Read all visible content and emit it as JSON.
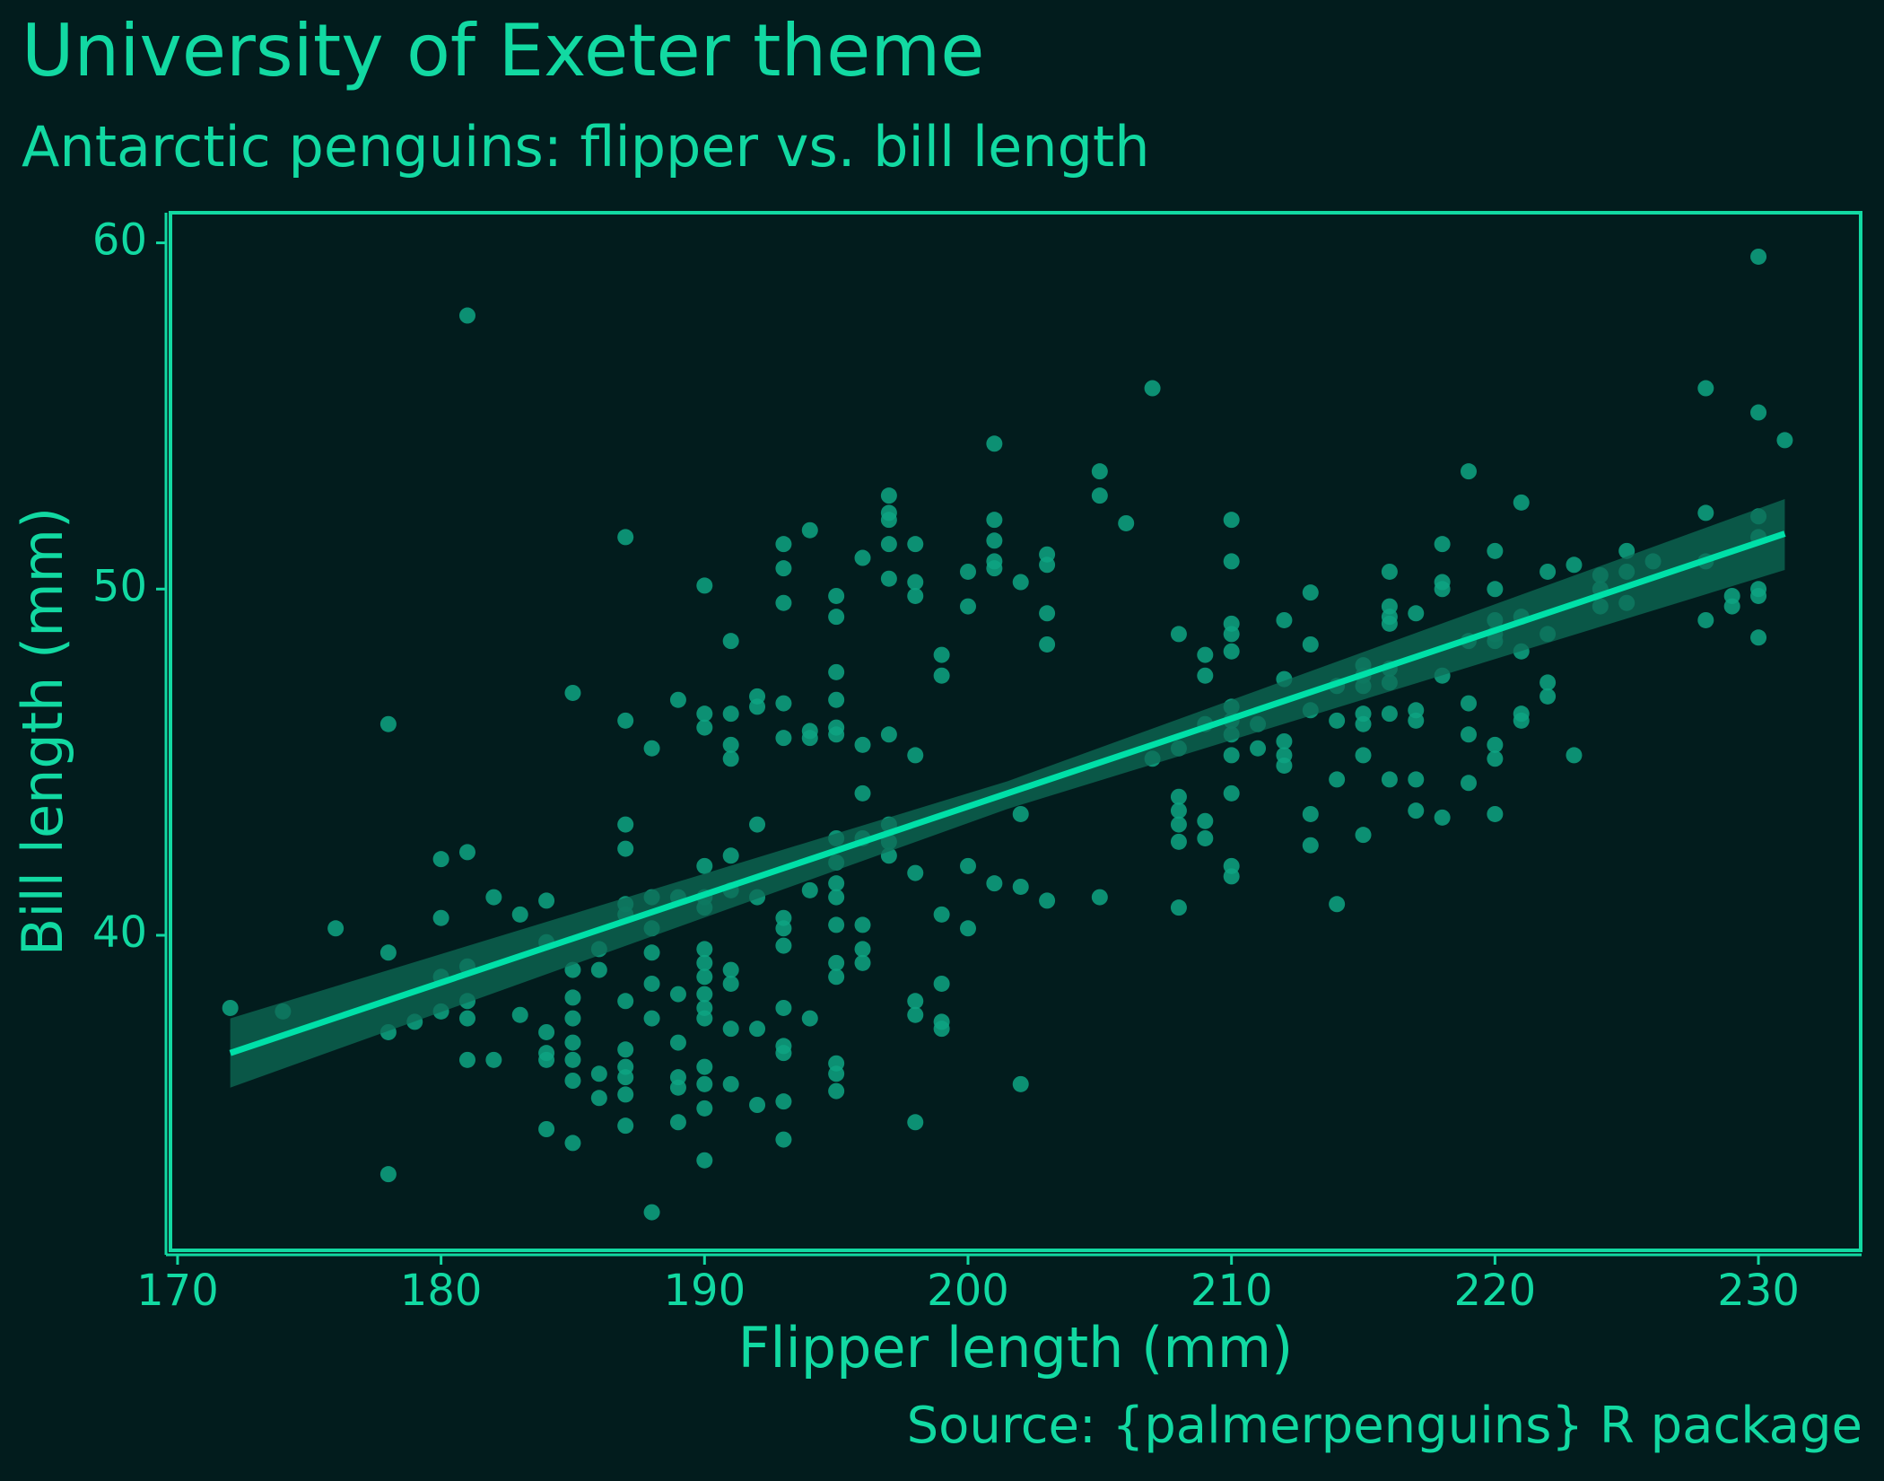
{
  "chart_data": {
    "type": "scatter",
    "title": "University of Exeter theme",
    "subtitle": "Antarctic penguins: flipper vs. bill length",
    "x_label": "Flipper length (mm)",
    "y_label": "Bill length (mm)",
    "caption": "Source: {palmerpenguins} R package",
    "xlim": [
      169.73,
      233.88
    ],
    "ylim": [
      30.9,
      60.87
    ],
    "xticks": [
      170,
      180,
      190,
      200,
      210,
      220,
      230
    ],
    "yticks": [
      40,
      50,
      60
    ],
    "point_color": "#0ea582",
    "line_color": "#00e0a8",
    "band_color": "#0e6b55",
    "text_color": "#12d9a2",
    "background": "#021c1d",
    "x": [
      172,
      174,
      176,
      178,
      178,
      178,
      178,
      179,
      180,
      180,
      180,
      180,
      181,
      181,
      181,
      181,
      181,
      181,
      182,
      182,
      183,
      183,
      184,
      184,
      184,
      184,
      184,
      184,
      185,
      185,
      185,
      185,
      185,
      185,
      185,
      185,
      186,
      186,
      186,
      186,
      187,
      187,
      187,
      187,
      187,
      187,
      187,
      187,
      187,
      187,
      187,
      187,
      188,
      188,
      188,
      188,
      188,
      188,
      188,
      189,
      189,
      189,
      189,
      189,
      189,
      189,
      190,
      190,
      190,
      190,
      190,
      190,
      190,
      190,
      190,
      190,
      190,
      190,
      190,
      190,
      190,
      190,
      191,
      191,
      191,
      191,
      191,
      191,
      191,
      191,
      191,
      191,
      192,
      192,
      192,
      192,
      192,
      192,
      193,
      193,
      193,
      193,
      193,
      193,
      193,
      193,
      193,
      193,
      193,
      193,
      193,
      194,
      194,
      194,
      194,
      194,
      195,
      195,
      195,
      195,
      195,
      195,
      195,
      195,
      195,
      195,
      195,
      195,
      195,
      195,
      195,
      195,
      196,
      196,
      196,
      196,
      196,
      196,
      196,
      197,
      197,
      197,
      197,
      197,
      197,
      197,
      197,
      197,
      198,
      198,
      198,
      198,
      198,
      198,
      198,
      198,
      199,
      199,
      199,
      199,
      199,
      199,
      200,
      200,
      200,
      200,
      201,
      201,
      201,
      201,
      201,
      201,
      202,
      202,
      202,
      202,
      203,
      203,
      203,
      203,
      203,
      205,
      205,
      205,
      206,
      207,
      207,
      208,
      208,
      208,
      208,
      208,
      208,
      208,
      209,
      209,
      209,
      209,
      209,
      210,
      210,
      210,
      210,
      210,
      210,
      210,
      210,
      210,
      210,
      210,
      210,
      211,
      211,
      212,
      212,
      212,
      212,
      212,
      213,
      213,
      213,
      213,
      213,
      214,
      214,
      214,
      214,
      215,
      215,
      215,
      215,
      215,
      215,
      215,
      216,
      216,
      216,
      216,
      216,
      216,
      216,
      216,
      217,
      217,
      217,
      217,
      217,
      218,
      218,
      218,
      218,
      218,
      219,
      219,
      219,
      219,
      219,
      220,
      220,
      220,
      220,
      220,
      220,
      220,
      220,
      221,
      221,
      221,
      221,
      221,
      222,
      222,
      222,
      222,
      223,
      223,
      224,
      224,
      224,
      225,
      225,
      225,
      226,
      228,
      228,
      228,
      228,
      229,
      229,
      230,
      230,
      230,
      230,
      230,
      230,
      230,
      231
    ],
    "values": [
      37.9,
      37.8,
      40.2,
      46.1,
      39.5,
      37.2,
      33.1,
      37.5,
      42.2,
      40.5,
      38.8,
      37.8,
      57.9,
      42.4,
      39.1,
      38.1,
      37.6,
      36.4,
      41.1,
      36.4,
      40.6,
      37.7,
      41,
      39.8,
      37.2,
      36.6,
      36.4,
      34.4,
      47,
      39,
      38.2,
      37.6,
      36.9,
      36.4,
      35.8,
      34,
      39.6,
      39,
      36,
      35.3,
      51.5,
      46.2,
      43.2,
      42.5,
      40.9,
      40.6,
      38.1,
      36.7,
      36.2,
      35.9,
      35.4,
      34.5,
      45.4,
      41.1,
      40.2,
      39.5,
      38.6,
      37.6,
      32,
      46.8,
      41.1,
      38.3,
      36.9,
      35.9,
      35.6,
      34.6,
      50.1,
      46.4,
      46,
      42,
      41.1,
      40.8,
      39.6,
      39.2,
      38.8,
      38.3,
      37.9,
      37.6,
      36.2,
      35.7,
      35,
      33.5,
      48.5,
      46.4,
      45.5,
      45.1,
      42.3,
      41.3,
      39,
      38.6,
      37.3,
      35.7,
      46.9,
      46.6,
      43.2,
      41.1,
      37.3,
      35.1,
      51.3,
      50.6,
      49.6,
      46.7,
      45.7,
      40.5,
      40.2,
      39.7,
      37.9,
      36.8,
      36.6,
      35.2,
      34.1,
      51.7,
      45.9,
      45.7,
      41.3,
      37.6,
      49.8,
      49.2,
      47.6,
      46.8,
      46,
      45.8,
      42.8,
      42.1,
      41.5,
      41.1,
      40.3,
      39.2,
      38.8,
      36.3,
      36,
      35.5,
      50.9,
      45.5,
      44.1,
      42.8,
      40.3,
      39.6,
      39.2,
      52.7,
      52.2,
      52,
      51.3,
      50.3,
      45.8,
      43.2,
      42.7,
      42.3,
      51.3,
      50.2,
      49.8,
      45.2,
      41.8,
      38.1,
      37.7,
      34.6,
      48.1,
      47.5,
      40.6,
      38.6,
      37.5,
      37.3,
      50.5,
      49.5,
      42,
      40.2,
      54.2,
      52,
      51.4,
      50.8,
      50.6,
      41.5,
      50.2,
      43.5,
      41.4,
      35.7,
      51,
      50.7,
      49.3,
      48.4,
      41,
      53.4,
      52.7,
      41.1,
      51.9,
      55.8,
      45.1,
      48.7,
      45.4,
      44,
      43.6,
      43.2,
      42.7,
      40.8,
      48.1,
      47.5,
      46.1,
      43.3,
      42.8,
      52,
      50.8,
      49,
      48.7,
      48.2,
      46.6,
      46.2,
      45.8,
      45.2,
      44.1,
      42,
      41.7,
      46.1,
      45.4,
      49.1,
      47.4,
      45.6,
      45.2,
      44.9,
      49.9,
      48.4,
      46.5,
      43.5,
      42.6,
      47.2,
      46.2,
      44.5,
      40.9,
      47.8,
      47.5,
      47.2,
      46.4,
      46.1,
      45.2,
      42.9,
      50.5,
      49.5,
      49.2,
      49,
      47.7,
      47.3,
      46.4,
      44.5,
      49.3,
      46.5,
      46.2,
      44.5,
      43.6,
      51.3,
      50.2,
      50,
      47.5,
      43.4,
      53.4,
      48.5,
      46.7,
      45.8,
      44.4,
      51.1,
      50,
      49.1,
      48.7,
      48.5,
      45.5,
      45.1,
      43.5,
      52.5,
      49.2,
      48.2,
      46.4,
      46.2,
      50.5,
      48.7,
      47.3,
      46.9,
      50.7,
      45.2,
      50.4,
      50,
      49.5,
      51.1,
      50.5,
      49.6,
      50.8,
      55.8,
      52.2,
      50.8,
      49.1,
      49.8,
      49.5,
      59.6,
      55.1,
      52.1,
      51.5,
      50,
      49.8,
      48.6,
      54.3
    ],
    "fit": {
      "x": [
        172,
        231
      ],
      "y": [
        36.6,
        51.6
      ]
    },
    "band": {
      "x": [
        172,
        201.5,
        231
      ],
      "lower": [
        35.6,
        43.65,
        50.55
      ],
      "upper": [
        37.6,
        44.45,
        52.6
      ]
    }
  }
}
